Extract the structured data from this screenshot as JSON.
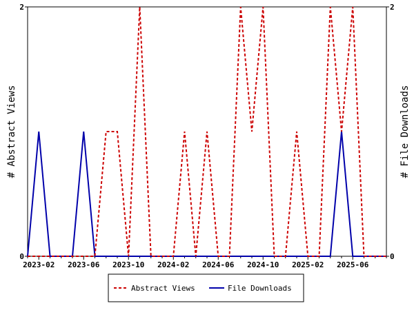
{
  "chart_data": {
    "type": "line",
    "title": "",
    "ylabel_left": "# Abstract Views",
    "ylabel_right": "# File Downloads",
    "ylim": [
      0,
      2
    ],
    "y_ticks": [
      0,
      2
    ],
    "x_tick_labels": [
      "2023-02",
      "2023-06",
      "2023-10",
      "2024-02",
      "2024-06",
      "2024-10",
      "2025-02",
      "2025-06"
    ],
    "x": [
      "2023-01",
      "2023-02",
      "2023-03",
      "2023-04",
      "2023-05",
      "2023-06",
      "2023-07",
      "2023-08",
      "2023-09",
      "2023-10",
      "2023-11",
      "2023-12",
      "2024-01",
      "2024-02",
      "2024-03",
      "2024-04",
      "2024-05",
      "2024-06",
      "2024-07",
      "2024-08",
      "2024-09",
      "2024-10",
      "2024-11",
      "2024-12",
      "2025-01",
      "2025-02",
      "2025-03",
      "2025-04",
      "2025-05",
      "2025-06",
      "2025-07",
      "2025-08",
      "2025-09"
    ],
    "series": [
      {
        "name": "Abstract Views",
        "color": "#cc0000",
        "style": "dashed",
        "axis": "left",
        "values": [
          0,
          0,
          0,
          0,
          0,
          0,
          0,
          1,
          1,
          0,
          2,
          0,
          0,
          0,
          1,
          0,
          1,
          0,
          0,
          2,
          1,
          2,
          0,
          0,
          1,
          0,
          0,
          2,
          1,
          2,
          0,
          0,
          0
        ]
      },
      {
        "name": "File Downloads",
        "color": "#0000aa",
        "style": "solid",
        "axis": "right",
        "values": [
          0,
          1,
          0,
          0,
          0,
          1,
          0,
          0,
          0,
          0,
          0,
          0,
          0,
          0,
          0,
          0,
          0,
          0,
          0,
          0,
          0,
          0,
          0,
          0,
          0,
          0,
          0,
          0,
          1,
          0,
          0,
          0,
          0
        ]
      }
    ],
    "legend": [
      "Abstract Views",
      "File Downloads"
    ],
    "legend_position": "bottom",
    "grid": false
  }
}
